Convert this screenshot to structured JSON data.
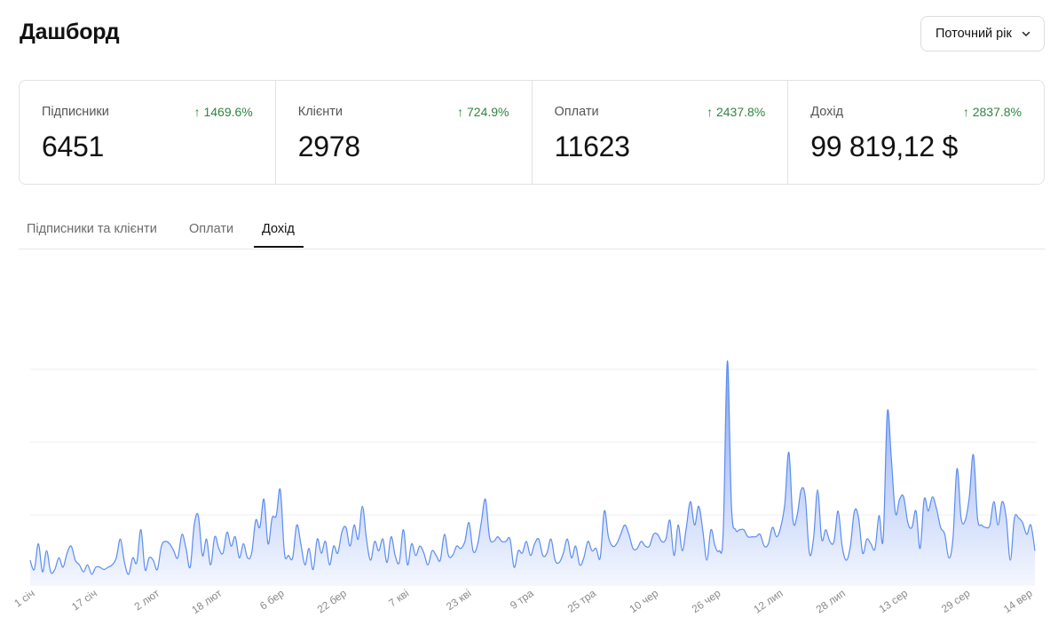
{
  "header": {
    "title": "Дашборд",
    "period_select": {
      "value": "Поточний рік",
      "icon": "chevron-down-icon"
    }
  },
  "stats": [
    {
      "label": "Підписники",
      "change": "↑ 1469.6%",
      "value": "6451"
    },
    {
      "label": "Клієнти",
      "change": "↑ 724.9%",
      "value": "2978"
    },
    {
      "label": "Оплати",
      "change": "↑ 2437.8%",
      "value": "11623"
    },
    {
      "label": "Дохід",
      "change": "↑ 2837.8%",
      "value": "99 819,12 $"
    }
  ],
  "tabs": [
    {
      "label": "Підписники та клієнти",
      "active": false
    },
    {
      "label": "Оплати",
      "active": false
    },
    {
      "label": "Дохід",
      "active": true
    }
  ],
  "colors": {
    "accent": "#5b8def",
    "positive": "#2e8540",
    "area_fill_top": "#7d9ff2",
    "area_fill_bottom": "#f3f6fe"
  },
  "chart_data": {
    "type": "area",
    "title": "",
    "xlabel": "",
    "ylabel": "",
    "grid": true,
    "x_ticks": [
      "1 січ",
      "17 січ",
      "2 лют",
      "18 лют",
      "6 бер",
      "22 бер",
      "7 кві",
      "23 кві",
      "9 тра",
      "25 тра",
      "10 чер",
      "26 чер",
      "12 лип",
      "28 лип",
      "13 сер",
      "29 сер",
      "14 вер"
    ],
    "ylim": [
      0,
      100
    ],
    "series": [
      {
        "values": [
          11,
          7,
          18,
          6,
          15,
          6,
          7,
          12,
          8,
          14,
          17,
          11,
          9,
          6,
          9,
          5,
          8,
          8,
          7,
          8,
          9,
          12,
          20,
          10,
          5,
          12,
          10,
          24,
          7,
          12,
          11,
          7,
          17,
          19,
          18,
          15,
          12,
          22,
          16,
          8,
          26,
          30,
          13,
          20,
          9,
          21,
          16,
          14,
          23,
          17,
          21,
          12,
          18,
          12,
          14,
          28,
          25,
          37,
          18,
          29,
          30,
          41,
          14,
          13,
          12,
          26,
          18,
          9,
          16,
          7,
          20,
          14,
          19,
          9,
          17,
          14,
          23,
          25,
          17,
          26,
          20,
          34,
          20,
          11,
          19,
          15,
          20,
          10,
          21,
          13,
          10,
          24,
          9,
          18,
          13,
          17,
          14,
          9,
          15,
          13,
          11,
          22,
          13,
          13,
          17,
          16,
          19,
          27,
          15,
          17,
          27,
          37,
          21,
          19,
          21,
          19,
          19,
          20,
          8,
          15,
          14,
          19,
          13,
          18,
          20,
          13,
          14,
          20,
          11,
          10,
          14,
          20,
          12,
          17,
          9,
          12,
          19,
          15,
          16,
          12,
          32,
          21,
          17,
          18,
          22,
          26,
          22,
          16,
          16,
          19,
          17,
          17,
          22,
          22,
          19,
          20,
          28,
          13,
          26,
          15,
          25,
          36,
          26,
          34,
          24,
          11,
          24,
          17,
          15,
          23,
          96,
          34,
          24,
          24,
          24,
          21,
          21,
          21,
          22,
          17,
          18,
          25,
          21,
          25,
          35,
          57,
          28,
          30,
          41,
          38,
          14,
          20,
          41,
          20,
          24,
          19,
          19,
          32,
          17,
          11,
          17,
          32,
          29,
          14,
          20,
          18,
          16,
          30,
          20,
          74,
          54,
          31,
          37,
          38,
          27,
          25,
          32,
          16,
          37,
          32,
          38,
          33,
          25,
          22,
          12,
          20,
          50,
          29,
          28,
          38,
          56,
          29,
          26,
          25,
          26,
          36,
          26,
          36,
          29,
          11,
          29,
          29,
          27,
          22,
          26,
          15
        ]
      }
    ]
  }
}
